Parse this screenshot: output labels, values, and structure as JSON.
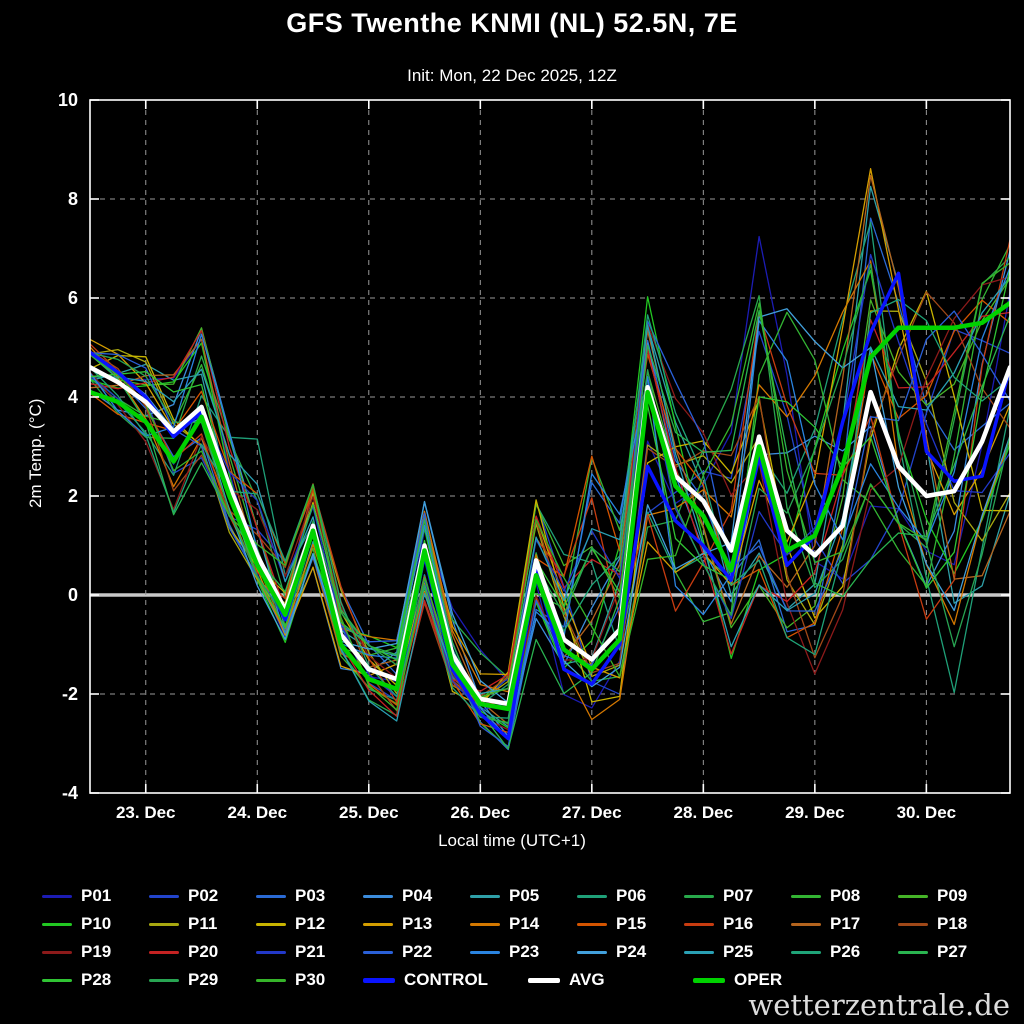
{
  "watermark": "wetterzentrale.de",
  "chart_data": {
    "type": "line",
    "title": "GFS Twenthe KNMI (NL) 52.5N, 7E",
    "subtitle": "Init: Mon, 22 Dec 2025, 12Z",
    "xlabel": "Local time (UTC+1)",
    "ylabel": "2m Temp. (°C)",
    "ylim": [
      -4,
      10
    ],
    "yticks": [
      -4,
      -2,
      0,
      2,
      4,
      6,
      8,
      10
    ],
    "grid": "dashed",
    "legend_position": "bottom",
    "background": "#000000",
    "zero_line_color": "#c8c8c8",
    "x_days": [
      -0.5,
      -0.25,
      0,
      0.25,
      0.5,
      0.75,
      1,
      1.25,
      1.5,
      1.75,
      2,
      2.25,
      2.5,
      2.75,
      3,
      3.25,
      3.5,
      3.75,
      4,
      4.25,
      4.5,
      4.75,
      5,
      5.25,
      5.5,
      5.75,
      6,
      6.25,
      6.5,
      6.75,
      7,
      7.25,
      7.5,
      7.75
    ],
    "xtick_days": [
      0,
      1,
      2,
      3,
      4,
      5,
      6,
      7
    ],
    "xtick_labels": [
      "23. Dec",
      "24. Dec",
      "25. Dec",
      "26. Dec",
      "27. Dec",
      "28. Dec",
      "29. Dec",
      "30. Dec"
    ],
    "series": [
      {
        "name": "CONTROL",
        "color": "#0a14ff",
        "values": [
          4.9,
          4.5,
          4.0,
          3.2,
          3.7,
          2.1,
          0.7,
          -0.5,
          1.3,
          -1.0,
          -1.7,
          -1.9,
          0.8,
          -1.5,
          -2.4,
          -2.9,
          0.5,
          -1.5,
          -1.8,
          -1.0,
          2.6,
          1.5,
          1.0,
          0.3,
          2.8,
          0.6,
          1.2,
          3.5,
          5.3,
          6.5,
          2.9,
          2.3,
          2.4,
          4.6
        ]
      },
      {
        "name": "AVG",
        "color": "#ffffff",
        "values": [
          4.6,
          4.3,
          3.9,
          3.3,
          3.8,
          2.2,
          0.8,
          -0.3,
          1.4,
          -0.8,
          -1.5,
          -1.7,
          1.0,
          -1.2,
          -2.1,
          -2.2,
          0.7,
          -0.9,
          -1.3,
          -0.7,
          4.2,
          2.4,
          1.9,
          0.9,
          3.2,
          1.3,
          0.8,
          1.4,
          4.1,
          2.6,
          2.0,
          2.1,
          3.1,
          4.6
        ]
      },
      {
        "name": "OPER",
        "color": "#00d200",
        "values": [
          4.1,
          3.9,
          3.5,
          2.7,
          3.6,
          2.0,
          0.6,
          -0.4,
          1.3,
          -1.0,
          -1.7,
          -1.9,
          0.9,
          -1.4,
          -2.2,
          -2.3,
          0.4,
          -1.1,
          -1.5,
          -0.9,
          4.1,
          2.2,
          1.6,
          0.5,
          3.0,
          0.9,
          1.2,
          2.6,
          4.8,
          5.4,
          5.4,
          5.4,
          5.5,
          5.9
        ]
      }
    ],
    "ensemble": {
      "envelope_min": [
        4.0,
        3.6,
        3.0,
        1.4,
        2.6,
        1.2,
        0.0,
        -1.0,
        0.5,
        -1.7,
        -2.3,
        -2.6,
        -0.3,
        -2.3,
        -2.9,
        -3.3,
        -1.0,
        -2.5,
        -2.8,
        -2.2,
        0.5,
        -0.5,
        -0.7,
        -1.5,
        0.0,
        -1.0,
        -1.8,
        -0.5,
        0.5,
        0.8,
        -0.9,
        -2.5,
        0.0,
        1.5
      ],
      "envelope_max": [
        5.2,
        5.0,
        4.9,
        4.6,
        5.5,
        3.5,
        3.3,
        0.8,
        2.3,
        0.3,
        -0.5,
        -0.8,
        2.0,
        0.0,
        -1.0,
        -1.2,
        2.0,
        1.0,
        3.5,
        2.0,
        6.3,
        4.5,
        4.0,
        4.4,
        7.5,
        6.2,
        5.4,
        6.3,
        8.9,
        7.2,
        6.4,
        6.0,
        6.5,
        7.4
      ],
      "members": [
        {
          "name": "P01",
          "color": "#1c1cb4"
        },
        {
          "name": "P02",
          "color": "#2244cc"
        },
        {
          "name": "P03",
          "color": "#2a6ad4"
        },
        {
          "name": "P04",
          "color": "#3c8cdc"
        },
        {
          "name": "P05",
          "color": "#2fa0a8"
        },
        {
          "name": "P06",
          "color": "#1fa078"
        },
        {
          "name": "P07",
          "color": "#28a84b"
        },
        {
          "name": "P08",
          "color": "#33b433"
        },
        {
          "name": "P09",
          "color": "#46b428"
        },
        {
          "name": "P10",
          "color": "#22c822"
        },
        {
          "name": "P11",
          "color": "#a8a810"
        },
        {
          "name": "P12",
          "color": "#c8b400"
        },
        {
          "name": "P13",
          "color": "#d49e00"
        },
        {
          "name": "P14",
          "color": "#d47800"
        },
        {
          "name": "P15",
          "color": "#d45400"
        },
        {
          "name": "P16",
          "color": "#c83c10"
        },
        {
          "name": "P17",
          "color": "#b4641e"
        },
        {
          "name": "P18",
          "color": "#a04818"
        },
        {
          "name": "P19",
          "color": "#8c1a1a"
        },
        {
          "name": "P20",
          "color": "#c42222"
        },
        {
          "name": "P21",
          "color": "#2238c8"
        },
        {
          "name": "P22",
          "color": "#2a60d8"
        },
        {
          "name": "P23",
          "color": "#2a84e0"
        },
        {
          "name": "P24",
          "color": "#42a0dc"
        },
        {
          "name": "P25",
          "color": "#2aa0b4"
        },
        {
          "name": "P26",
          "color": "#1fa478"
        },
        {
          "name": "P27",
          "color": "#2ab450"
        },
        {
          "name": "P28",
          "color": "#30c434"
        },
        {
          "name": "P29",
          "color": "#28a452"
        },
        {
          "name": "P30",
          "color": "#36b42a"
        }
      ]
    }
  }
}
